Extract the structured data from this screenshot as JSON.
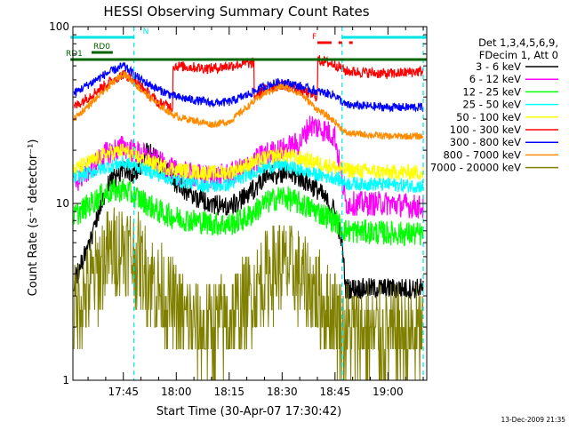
{
  "chart_data": {
    "type": "line",
    "title": "HESSI Observing Summary Count Rates",
    "xlabel": "Start Time (30-Apr-07 17:30:42)",
    "ylabel": "Count Rate (s⁻¹ detector⁻¹)",
    "yscale": "log",
    "ylim": [
      1,
      100
    ],
    "xlim": [
      "17:30:42",
      "19:11:00"
    ],
    "x_ticks": [
      "17:45",
      "18:00",
      "18:15",
      "18:30",
      "18:45",
      "19:00"
    ],
    "y_ticks": [
      "1",
      "10",
      "100"
    ],
    "grid": false,
    "legend_position": "right",
    "legend_header": [
      "Det 1,3,4,5,6,9,",
      "FDecim 1, Att 0"
    ],
    "footer_date": "13-Dec-2009 21:35",
    "flags": [
      {
        "label": "N",
        "color": "#00e5e5",
        "intervals": [
          [
            "17:30",
            "17:48"
          ],
          [
            "18:47",
            "19:11"
          ]
        ]
      },
      {
        "label": "RD0",
        "color": "#006400",
        "intervals": [
          [
            "17:36",
            "17:42"
          ]
        ]
      },
      {
        "label": "RD1",
        "color": "#006400",
        "intervals": [
          [
            "17:30",
            "19:11"
          ]
        ]
      },
      {
        "label": "F",
        "color": "#ff0000",
        "intervals": [
          [
            "18:40",
            "18:44"
          ],
          [
            "18:46",
            "18:47"
          ],
          [
            "18:49",
            "18:50"
          ]
        ]
      }
    ],
    "dashed_lines_at": [
      "17:48",
      "18:47",
      "19:10"
    ],
    "series": [
      {
        "name": "3 - 6 keV",
        "color": "#000000",
        "points": [
          [
            "17:31",
            3.6
          ],
          [
            "17:36",
            6.5
          ],
          [
            "17:40",
            12
          ],
          [
            "17:45",
            16
          ],
          [
            "17:48",
            14
          ],
          [
            "17:52",
            20
          ],
          [
            "17:55",
            17
          ],
          [
            "18:00",
            13
          ],
          [
            "18:05",
            11
          ],
          [
            "18:10",
            10
          ],
          [
            "18:15",
            9.5
          ],
          [
            "18:20",
            11
          ],
          [
            "18:25",
            14
          ],
          [
            "18:30",
            15
          ],
          [
            "18:35",
            14
          ],
          [
            "18:40",
            12
          ],
          [
            "18:45",
            9
          ],
          [
            "18:47",
            6
          ],
          [
            "18:48",
            3.3
          ],
          [
            "19:00",
            3.3
          ],
          [
            "19:10",
            3.3
          ]
        ]
      },
      {
        "name": "6 - 12 keV",
        "color": "#ff00ff",
        "points": [
          [
            "17:31",
            13
          ],
          [
            "17:40",
            19
          ],
          [
            "17:45",
            21
          ],
          [
            "17:50",
            19
          ],
          [
            "17:55",
            17
          ],
          [
            "18:00",
            15
          ],
          [
            "18:10",
            14
          ],
          [
            "18:15",
            14.5
          ],
          [
            "18:20",
            16
          ],
          [
            "18:25",
            19
          ],
          [
            "18:30",
            20
          ],
          [
            "18:35",
            22
          ],
          [
            "18:38",
            28
          ],
          [
            "18:42",
            26
          ],
          [
            "18:45",
            24
          ],
          [
            "18:48",
            10
          ],
          [
            "19:00",
            10
          ],
          [
            "19:10",
            9.5
          ]
        ]
      },
      {
        "name": "12 - 25 keV",
        "color": "#00ff00",
        "points": [
          [
            "17:31",
            8.5
          ],
          [
            "17:40",
            11.5
          ],
          [
            "17:45",
            12
          ],
          [
            "17:50",
            10.5
          ],
          [
            "17:55",
            9
          ],
          [
            "18:00",
            8.3
          ],
          [
            "18:10",
            7.7
          ],
          [
            "18:15",
            7.6
          ],
          [
            "18:20",
            8.3
          ],
          [
            "18:25",
            10
          ],
          [
            "18:30",
            11
          ],
          [
            "18:35",
            10
          ],
          [
            "18:40",
            9
          ],
          [
            "18:45",
            8
          ],
          [
            "18:48",
            7
          ],
          [
            "19:00",
            6.8
          ],
          [
            "19:10",
            6.7
          ]
        ]
      },
      {
        "name": "25 - 50 keV",
        "color": "#00ffff",
        "points": [
          [
            "17:31",
            14
          ],
          [
            "17:40",
            16
          ],
          [
            "17:45",
            17
          ],
          [
            "17:50",
            16
          ],
          [
            "17:55",
            14.5
          ],
          [
            "18:00",
            13.5
          ],
          [
            "18:10",
            12.5
          ],
          [
            "18:15",
            12.8
          ],
          [
            "18:20",
            14.5
          ],
          [
            "18:25",
            16
          ],
          [
            "18:30",
            16.5
          ],
          [
            "18:35",
            15.5
          ],
          [
            "18:40",
            14.5
          ],
          [
            "18:45",
            14
          ],
          [
            "18:48",
            13
          ],
          [
            "19:00",
            12.8
          ],
          [
            "19:10",
            12.5
          ]
        ]
      },
      {
        "name": "50 - 100 keV",
        "color": "#ffff00",
        "points": [
          [
            "17:31",
            15.5
          ],
          [
            "17:40",
            19
          ],
          [
            "17:45",
            20
          ],
          [
            "17:50",
            18
          ],
          [
            "17:55",
            16.5
          ],
          [
            "18:00",
            15.5
          ],
          [
            "18:10",
            14.8
          ],
          [
            "18:15",
            15
          ],
          [
            "18:20",
            16.5
          ],
          [
            "18:25",
            18
          ],
          [
            "18:30",
            19
          ],
          [
            "18:35",
            18
          ],
          [
            "18:40",
            17
          ],
          [
            "18:45",
            16
          ],
          [
            "18:48",
            15.5
          ],
          [
            "19:00",
            15
          ],
          [
            "19:10",
            15
          ]
        ]
      },
      {
        "name": "100 - 300 keV",
        "color": "#ff0000",
        "points": [
          [
            "17:31",
            35
          ],
          [
            "17:40",
            47
          ],
          [
            "17:45",
            54
          ],
          [
            "17:48",
            50
          ],
          [
            "17:52",
            42
          ],
          [
            "17:55",
            37
          ],
          [
            "17:59",
            35
          ],
          [
            "17:59",
            60
          ],
          [
            "18:10",
            58
          ],
          [
            "18:20",
            62
          ],
          [
            "18:22",
            62
          ],
          [
            "18:22",
            40
          ],
          [
            "18:25",
            44
          ],
          [
            "18:30",
            47
          ],
          [
            "18:35",
            44
          ],
          [
            "18:40",
            40
          ],
          [
            "18:40",
            65
          ],
          [
            "18:45",
            61
          ],
          [
            "18:47",
            58
          ],
          [
            "18:48",
            56
          ],
          [
            "19:00",
            54
          ],
          [
            "19:10",
            56
          ]
        ]
      },
      {
        "name": "300 - 800 keV",
        "color": "#0000ff",
        "points": [
          [
            "17:31",
            42
          ],
          [
            "17:40",
            54
          ],
          [
            "17:45",
            60
          ],
          [
            "17:50",
            50
          ],
          [
            "17:55",
            44
          ],
          [
            "18:00",
            40
          ],
          [
            "18:10",
            37
          ],
          [
            "18:15",
            37.5
          ],
          [
            "18:20",
            41
          ],
          [
            "18:25",
            46
          ],
          [
            "18:30",
            49
          ],
          [
            "18:35",
            46
          ],
          [
            "18:40",
            43
          ],
          [
            "18:45",
            41
          ],
          [
            "18:48",
            36
          ],
          [
            "19:00",
            35
          ],
          [
            "19:10",
            35
          ]
        ]
      },
      {
        "name": "800 - 7000 keV",
        "color": "#ff8c00",
        "points": [
          [
            "17:31",
            30
          ],
          [
            "17:40",
            44
          ],
          [
            "17:45",
            55
          ],
          [
            "17:50",
            44
          ],
          [
            "17:55",
            36
          ],
          [
            "18:00",
            31
          ],
          [
            "18:10",
            28
          ],
          [
            "18:15",
            29
          ],
          [
            "18:20",
            35
          ],
          [
            "18:25",
            42
          ],
          [
            "18:30",
            46
          ],
          [
            "18:35",
            42
          ],
          [
            "18:40",
            34
          ],
          [
            "18:45",
            29
          ],
          [
            "18:48",
            25
          ],
          [
            "19:00",
            24
          ],
          [
            "19:10",
            24
          ]
        ]
      },
      {
        "name": "7000 - 20000 keV",
        "color": "#808000",
        "points": [
          [
            "17:31",
            2.5
          ],
          [
            "17:36",
            3.5
          ],
          [
            "17:40",
            5
          ],
          [
            "17:45",
            5.8
          ],
          [
            "17:50",
            4.5
          ],
          [
            "17:55",
            3.3
          ],
          [
            "18:00",
            2.5
          ],
          [
            "18:05",
            2
          ],
          [
            "18:10",
            2
          ],
          [
            "18:15",
            2.2
          ],
          [
            "18:20",
            2.8
          ],
          [
            "18:25",
            3.8
          ],
          [
            "18:30",
            4.5
          ],
          [
            "18:35",
            3.8
          ],
          [
            "18:40",
            3
          ],
          [
            "18:45",
            2.3
          ],
          [
            "18:48",
            1.9
          ],
          [
            "19:00",
            1.8
          ],
          [
            "19:10",
            1.8
          ]
        ]
      }
    ]
  }
}
